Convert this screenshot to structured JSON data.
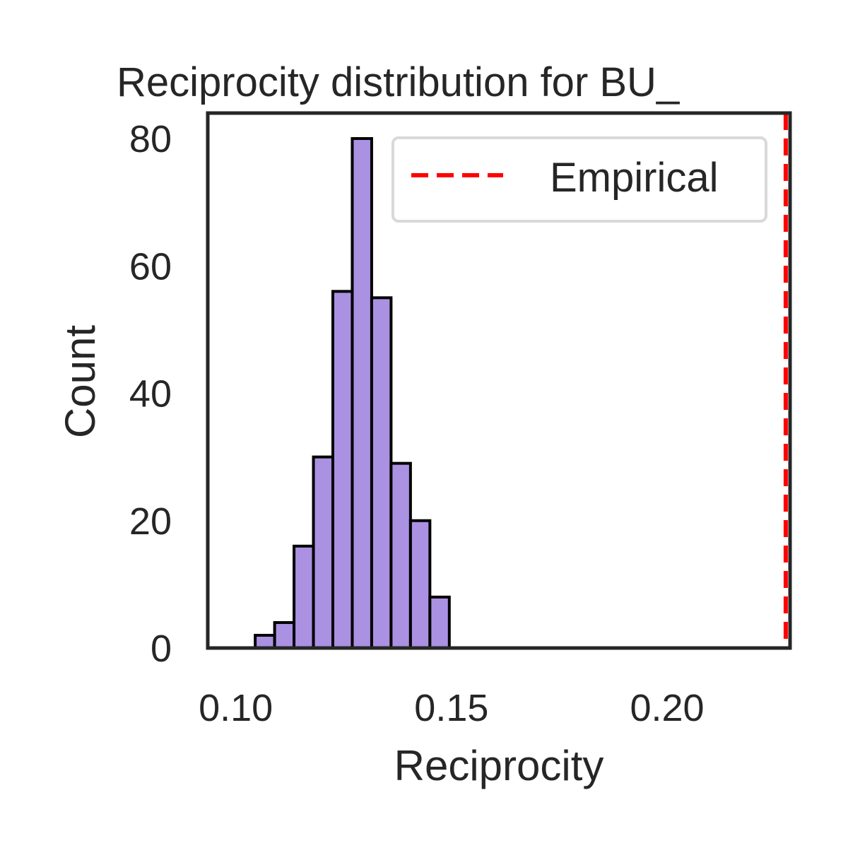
{
  "chart_data": {
    "type": "bar",
    "title": "Reciprocity distribution for BU_",
    "xlabel": "Reciprocity",
    "ylabel": "Count",
    "xlim": [
      0.0935,
      0.2285
    ],
    "ylim": [
      0,
      84
    ],
    "xticks": [
      0.1,
      0.15,
      0.2
    ],
    "xtick_labels": [
      "0.10",
      "0.15",
      "0.20"
    ],
    "yticks": [
      0,
      20,
      40,
      60,
      80
    ],
    "ytick_labels": [
      "0",
      "20",
      "40",
      "60",
      "80"
    ],
    "bins": [
      {
        "x0": 0.1,
        "x1": 0.1045,
        "count": 0
      },
      {
        "x0": 0.1045,
        "x1": 0.109,
        "count": 2
      },
      {
        "x0": 0.109,
        "x1": 0.1135,
        "count": 4
      },
      {
        "x0": 0.1135,
        "x1": 0.118,
        "count": 16
      },
      {
        "x0": 0.118,
        "x1": 0.1225,
        "count": 30
      },
      {
        "x0": 0.1225,
        "x1": 0.127,
        "count": 56
      },
      {
        "x0": 0.127,
        "x1": 0.1315,
        "count": 80
      },
      {
        "x0": 0.1315,
        "x1": 0.136,
        "count": 55
      },
      {
        "x0": 0.136,
        "x1": 0.1405,
        "count": 29
      },
      {
        "x0": 0.1405,
        "x1": 0.145,
        "count": 20
      },
      {
        "x0": 0.145,
        "x1": 0.1495,
        "count": 8
      }
    ],
    "bar_color": "#ab91e2",
    "bar_edge_color": "#000000",
    "reference_line": {
      "label": "Empirical",
      "x": 0.2275,
      "color": "#ff0000",
      "style": "dashed"
    },
    "legend": {
      "position": "top-right",
      "entries": [
        "Empirical"
      ]
    },
    "grid": false
  }
}
